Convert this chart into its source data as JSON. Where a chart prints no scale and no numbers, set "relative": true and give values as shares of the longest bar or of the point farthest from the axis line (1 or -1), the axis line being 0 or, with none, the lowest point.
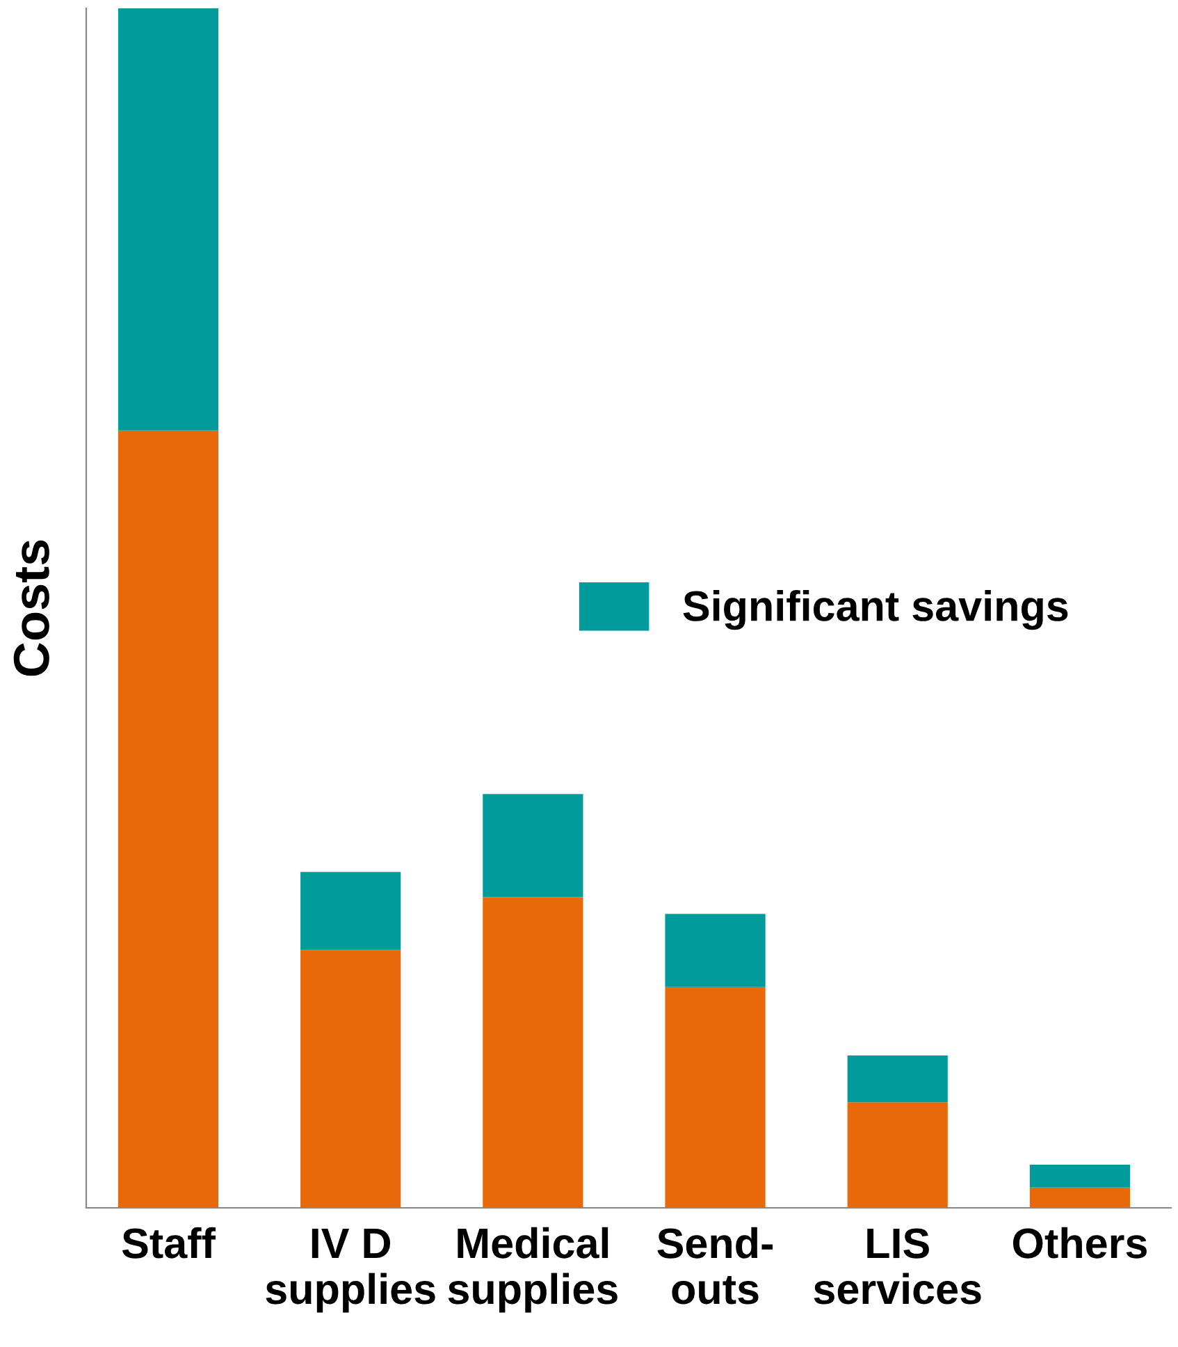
{
  "chart_data": {
    "type": "bar",
    "stacked": true,
    "relative": true,
    "ylabel": "Costs",
    "categories": [
      "Staff",
      "IV D\nsupplies",
      "Medical\nsupplies",
      "Send-\nouts",
      "LIS\nservices",
      "Others"
    ],
    "series": [
      {
        "color": "#e8680a",
        "values": [
          0.648,
          0.215,
          0.259,
          0.184,
          0.088,
          0.017
        ]
      },
      {
        "name": "Significant savings",
        "color": "#009b9a",
        "values": [
          0.352,
          0.065,
          0.086,
          0.061,
          0.039,
          0.019
        ]
      }
    ],
    "legend": "right",
    "grid": false
  }
}
